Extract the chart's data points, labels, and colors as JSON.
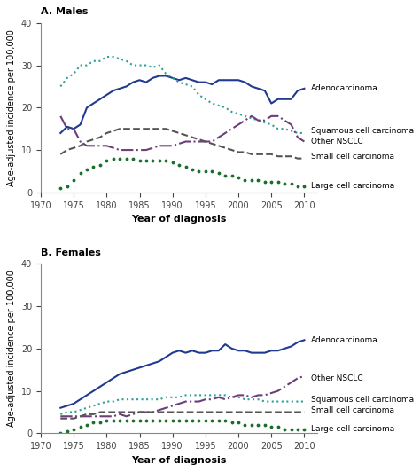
{
  "panel_A_title": "A. Males",
  "panel_B_title": "B. Females",
  "xlabel": "Year of diagnosis",
  "ylabel": "Age-adjusted incidence per 100,000",
  "ylim": [
    0,
    40
  ],
  "yticks": [
    0,
    10,
    20,
    30,
    40
  ],
  "xlim": [
    1970,
    2012
  ],
  "xticks": [
    1970,
    1975,
    1980,
    1985,
    1990,
    1995,
    2000,
    2005,
    2010
  ],
  "males": {
    "adenocarcinoma": {
      "years": [
        1973,
        1974,
        1975,
        1976,
        1977,
        1978,
        1979,
        1980,
        1981,
        1982,
        1983,
        1984,
        1985,
        1986,
        1987,
        1988,
        1989,
        1990,
        1991,
        1992,
        1993,
        1994,
        1995,
        1996,
        1997,
        1998,
        1999,
        2000,
        2001,
        2002,
        2003,
        2004,
        2005,
        2006,
        2007,
        2008,
        2009,
        2010
      ],
      "values": [
        14,
        15.5,
        15,
        16,
        20,
        21,
        22,
        23,
        24,
        24.5,
        25,
        26,
        26.5,
        26,
        27,
        27.5,
        27.5,
        27,
        26.5,
        27,
        26.5,
        26,
        26,
        25.5,
        26.5,
        26.5,
        26.5,
        26.5,
        26,
        25,
        24.5,
        24,
        21,
        22,
        22,
        22,
        24,
        24.5
      ],
      "color": "#1f3a8f",
      "linestyle": "solid",
      "linewidth": 1.5,
      "label": "Adenocarcinoma"
    },
    "squamous": {
      "years": [
        1973,
        1974,
        1975,
        1976,
        1977,
        1978,
        1979,
        1980,
        1981,
        1982,
        1983,
        1984,
        1985,
        1986,
        1987,
        1988,
        1989,
        1990,
        1991,
        1992,
        1993,
        1994,
        1995,
        1996,
        1997,
        1998,
        1999,
        2000,
        2001,
        2002,
        2003,
        2004,
        2005,
        2006,
        2007,
        2008,
        2009,
        2010
      ],
      "values": [
        25,
        27,
        28,
        30,
        30,
        31,
        31,
        32,
        32,
        31.5,
        31,
        30,
        30,
        30,
        29.5,
        30,
        28,
        27,
        26,
        25.5,
        25,
        23,
        22,
        21,
        20.5,
        20,
        19,
        18.5,
        18,
        17.5,
        17,
        16.5,
        16,
        15,
        15,
        14.5,
        14,
        14
      ],
      "color": "#2aa198",
      "linestyle": "dotted",
      "linewidth": 1.5,
      "label": "Squamous cell carcinoma"
    },
    "other_nsclc": {
      "years": [
        1973,
        1974,
        1975,
        1976,
        1977,
        1978,
        1979,
        1980,
        1981,
        1982,
        1983,
        1984,
        1985,
        1986,
        1987,
        1988,
        1989,
        1990,
        1991,
        1992,
        1993,
        1994,
        1995,
        1996,
        1997,
        1998,
        1999,
        2000,
        2001,
        2002,
        2003,
        2004,
        2005,
        2006,
        2007,
        2008,
        2009,
        2010
      ],
      "values": [
        18,
        15,
        15,
        12,
        11,
        11,
        11,
        11,
        10.5,
        10,
        10,
        10,
        10,
        10,
        10.5,
        11,
        11,
        11,
        11.5,
        12,
        12,
        12,
        12,
        12,
        13,
        14,
        15,
        16,
        17,
        18,
        17,
        17,
        18,
        18,
        17,
        16,
        13,
        12
      ],
      "color": "#6c3f7a",
      "linestyle": "dashdot",
      "linewidth": 1.5,
      "label": "Other NSCLC"
    },
    "small_cell": {
      "years": [
        1973,
        1974,
        1975,
        1976,
        1977,
        1978,
        1979,
        1980,
        1981,
        1982,
        1983,
        1984,
        1985,
        1986,
        1987,
        1988,
        1989,
        1990,
        1991,
        1992,
        1993,
        1994,
        1995,
        1996,
        1997,
        1998,
        1999,
        2000,
        2001,
        2002,
        2003,
        2004,
        2005,
        2006,
        2007,
        2008,
        2009,
        2010
      ],
      "values": [
        9,
        10,
        10.5,
        11,
        12,
        12.5,
        13,
        14,
        14.5,
        15,
        15,
        15,
        15,
        15,
        15,
        15,
        15,
        14.5,
        14,
        13.5,
        13,
        12.5,
        12,
        11.5,
        11,
        10.5,
        10,
        9.5,
        9.5,
        9,
        9,
        9,
        9,
        8.5,
        8.5,
        8.5,
        8,
        8
      ],
      "color": "#555555",
      "linestyle": "dashed",
      "linewidth": 1.5,
      "label": "Small cell carcinoma"
    },
    "large_cell": {
      "years": [
        1973,
        1974,
        1975,
        1976,
        1977,
        1978,
        1979,
        1980,
        1981,
        1982,
        1983,
        1984,
        1985,
        1986,
        1987,
        1988,
        1989,
        1990,
        1991,
        1992,
        1993,
        1994,
        1995,
        1996,
        1997,
        1998,
        1999,
        2000,
        2001,
        2002,
        2003,
        2004,
        2005,
        2006,
        2007,
        2008,
        2009,
        2010
      ],
      "values": [
        1,
        1.5,
        3,
        4.5,
        5.5,
        6,
        6.5,
        7.5,
        8,
        8,
        8,
        8,
        7.5,
        7.5,
        7.5,
        7.5,
        7.5,
        7,
        6.5,
        6,
        5.5,
        5,
        5,
        5,
        4.5,
        4,
        4,
        3.5,
        3,
        3,
        3,
        2.5,
        2.5,
        2.5,
        2,
        2,
        1.5,
        1.5
      ],
      "color": "#1a6e2e",
      "linestyle": "dotted_marker",
      "linewidth": 2.0,
      "label": "Large cell carcinoma"
    }
  },
  "females": {
    "adenocarcinoma": {
      "years": [
        1973,
        1974,
        1975,
        1976,
        1977,
        1978,
        1979,
        1980,
        1981,
        1982,
        1983,
        1984,
        1985,
        1986,
        1987,
        1988,
        1989,
        1990,
        1991,
        1992,
        1993,
        1994,
        1995,
        1996,
        1997,
        1998,
        1999,
        2000,
        2001,
        2002,
        2003,
        2004,
        2005,
        2006,
        2007,
        2008,
        2009,
        2010
      ],
      "values": [
        6,
        6.5,
        7,
        8,
        9,
        10,
        11,
        12,
        13,
        14,
        14.5,
        15,
        15.5,
        16,
        16.5,
        17,
        18,
        19,
        19.5,
        19,
        19.5,
        19,
        19,
        19.5,
        19.5,
        21,
        20,
        19.5,
        19.5,
        19,
        19,
        19,
        19.5,
        19.5,
        20,
        20.5,
        21.5,
        22
      ],
      "color": "#1f3a8f",
      "linestyle": "solid",
      "linewidth": 1.5,
      "label": "Adenocarcinoma"
    },
    "squamous": {
      "years": [
        1973,
        1974,
        1975,
        1976,
        1977,
        1978,
        1979,
        1980,
        1981,
        1982,
        1983,
        1984,
        1985,
        1986,
        1987,
        1988,
        1989,
        1990,
        1991,
        1992,
        1993,
        1994,
        1995,
        1996,
        1997,
        1998,
        1999,
        2000,
        2001,
        2002,
        2003,
        2004,
        2005,
        2006,
        2007,
        2008,
        2009,
        2010
      ],
      "values": [
        4.5,
        5,
        5,
        5.5,
        6,
        6.5,
        7,
        7.5,
        7.5,
        8,
        8,
        8,
        8,
        8,
        8,
        8,
        8.5,
        8.5,
        8.5,
        9,
        9,
        9,
        9,
        9,
        9,
        9,
        8.5,
        8.5,
        8,
        8,
        8,
        7.5,
        7.5,
        7.5,
        7.5,
        7.5,
        7.5,
        7.5
      ],
      "color": "#2aa198",
      "linestyle": "dotted",
      "linewidth": 1.5,
      "label": "Squamous cell carcinoma"
    },
    "other_nsclc": {
      "years": [
        1973,
        1974,
        1975,
        1976,
        1977,
        1978,
        1979,
        1980,
        1981,
        1982,
        1983,
        1984,
        1985,
        1986,
        1987,
        1988,
        1989,
        1990,
        1991,
        1992,
        1993,
        1994,
        1995,
        1996,
        1997,
        1998,
        1999,
        2000,
        2001,
        2002,
        2003,
        2004,
        2005,
        2006,
        2007,
        2008,
        2009,
        2010
      ],
      "values": [
        4,
        4,
        4,
        4,
        4,
        4,
        4,
        4,
        4,
        4.5,
        4,
        4.5,
        5,
        5,
        5,
        5.5,
        6,
        6.5,
        7,
        7.5,
        7.5,
        7.5,
        8,
        8,
        8.5,
        8,
        8.5,
        9,
        9,
        8.5,
        9,
        9,
        9.5,
        10,
        11,
        12,
        13,
        13.5
      ],
      "color": "#6c3f7a",
      "linestyle": "dashdot",
      "linewidth": 1.5,
      "label": "Other NSCLC"
    },
    "small_cell": {
      "years": [
        1973,
        1974,
        1975,
        1976,
        1977,
        1978,
        1979,
        1980,
        1981,
        1982,
        1983,
        1984,
        1985,
        1986,
        1987,
        1988,
        1989,
        1990,
        1991,
        1992,
        1993,
        1994,
        1995,
        1996,
        1997,
        1998,
        1999,
        2000,
        2001,
        2002,
        2003,
        2004,
        2005,
        2006,
        2007,
        2008,
        2009,
        2010
      ],
      "values": [
        3.5,
        3.5,
        3.5,
        4,
        4.5,
        4.5,
        5,
        5,
        5,
        5,
        5,
        5,
        5,
        5,
        5,
        5,
        5,
        5,
        5,
        5,
        5,
        5,
        5,
        5,
        5,
        5,
        5,
        5,
        5,
        5,
        5,
        5,
        5,
        5,
        5,
        5,
        5,
        5
      ],
      "color": "#555555",
      "linestyle": "dashed",
      "linewidth": 1.5,
      "label": "Small cell carcinoma"
    },
    "large_cell": {
      "years": [
        1973,
        1974,
        1975,
        1976,
        1977,
        1978,
        1979,
        1980,
        1981,
        1982,
        1983,
        1984,
        1985,
        1986,
        1987,
        1988,
        1989,
        1990,
        1991,
        1992,
        1993,
        1994,
        1995,
        1996,
        1997,
        1998,
        1999,
        2000,
        2001,
        2002,
        2003,
        2004,
        2005,
        2006,
        2007,
        2008,
        2009,
        2010
      ],
      "values": [
        0,
        0.5,
        1,
        1.5,
        2,
        2.5,
        2.5,
        3,
        3,
        3,
        3,
        3,
        3,
        3,
        3,
        3,
        3,
        3,
        3,
        3,
        3,
        3,
        3,
        3,
        3,
        3,
        2.5,
        2.5,
        2,
        2,
        2,
        2,
        1.5,
        1.5,
        1,
        1,
        1,
        1
      ],
      "color": "#1a6e2e",
      "linestyle": "dotted_marker",
      "linewidth": 2.0,
      "label": "Large cell carcinoma"
    }
  }
}
